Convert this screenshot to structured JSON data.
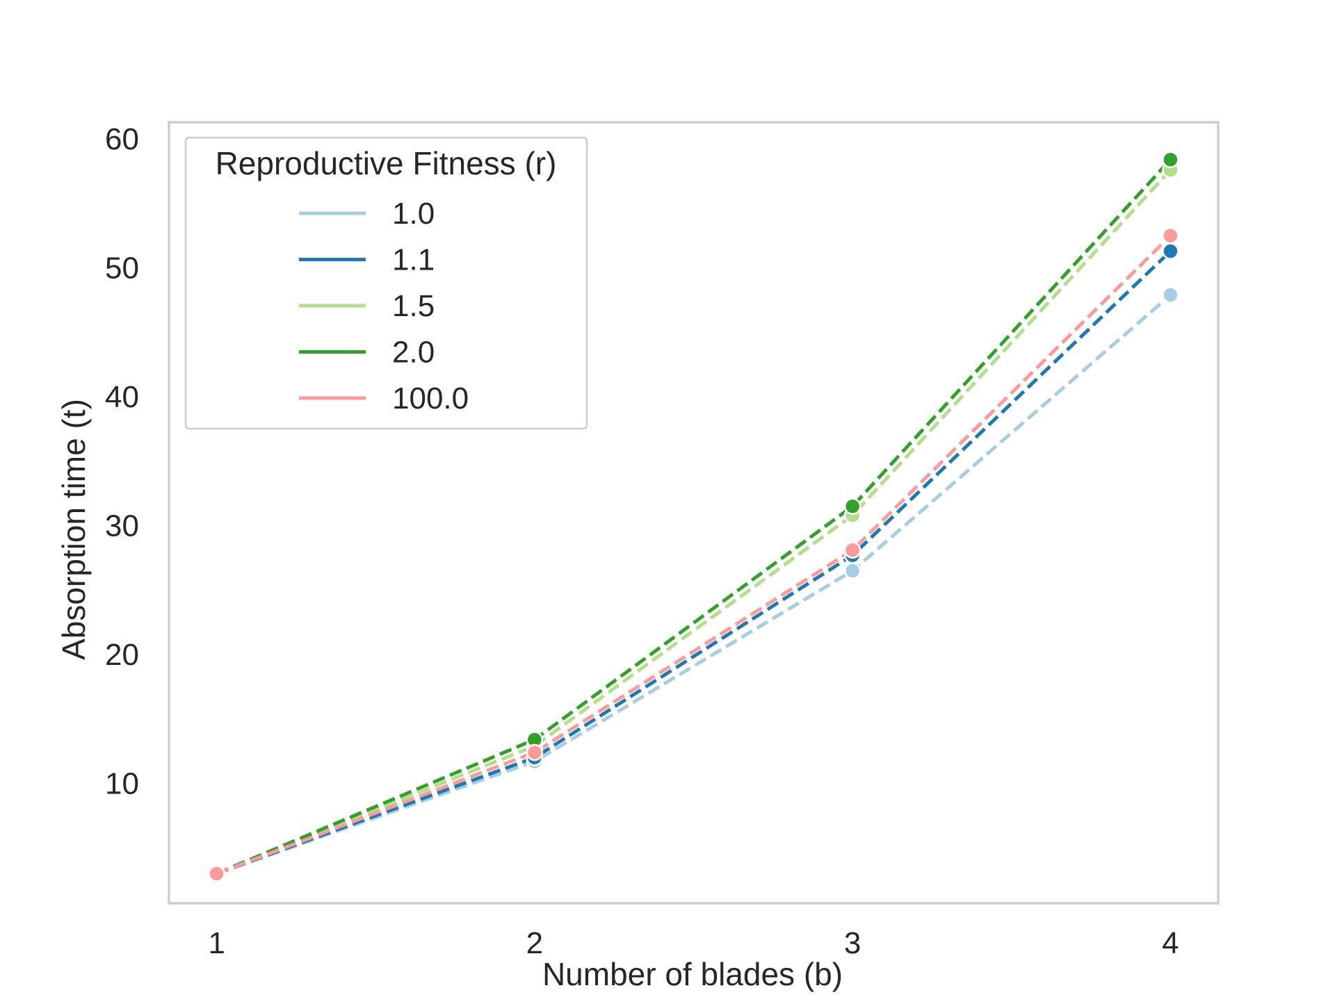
{
  "chart_data": {
    "type": "line",
    "title": "",
    "xlabel": "Number of blades (b)",
    "ylabel": "Absorption time (t)",
    "x": [
      1,
      2,
      3,
      4
    ],
    "x_ticks": [
      "1",
      "2",
      "3",
      "4"
    ],
    "y_ticks": [
      "10",
      "20",
      "30",
      "40",
      "50",
      "60"
    ],
    "y_tick_values": [
      10,
      20,
      30,
      40,
      50,
      60
    ],
    "xlim": [
      0.85,
      4.15
    ],
    "ylim": [
      0.7,
      61.3
    ],
    "grid": false,
    "line_style": "dashed",
    "markers": "circle",
    "legend": {
      "title": "Reproductive Fitness (r)",
      "placement": "top-left"
    },
    "series": [
      {
        "name": "1.0",
        "color": "#a6cee3",
        "values": [
          3.0,
          11.7,
          26.5,
          47.9
        ]
      },
      {
        "name": "1.1",
        "color": "#1f78b4",
        "values": [
          3.0,
          12.0,
          27.7,
          51.3
        ]
      },
      {
        "name": "1.5",
        "color": "#b2df8a",
        "values": [
          3.0,
          12.9,
          30.8,
          57.6
        ]
      },
      {
        "name": "2.0",
        "color": "#33a02c",
        "values": [
          3.0,
          13.4,
          31.5,
          58.4
        ]
      },
      {
        "name": "100.0",
        "color": "#fb9a99",
        "values": [
          3.0,
          12.4,
          28.1,
          52.5
        ]
      }
    ]
  }
}
